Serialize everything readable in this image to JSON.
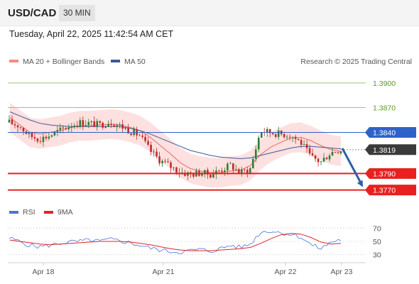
{
  "header": {
    "symbol": "USD/CAD",
    "timeframe": "30 MIN",
    "timestamp": "Tuesday, April 22, 2025 11:42:54 AM CET"
  },
  "legend": {
    "ma20": {
      "label": "MA 20 + Bollinger Bands",
      "color": "#f28b86"
    },
    "ma50": {
      "label": "MA 50",
      "color": "#3a5a9a"
    },
    "credit": "Research © 2025 Trading Central"
  },
  "indicator_legend": {
    "rsi": {
      "label": "RSI",
      "color": "#4a74d8"
    },
    "ma9": {
      "label": "9MA",
      "color": "#e0242a"
    }
  },
  "colors": {
    "up_candle": "#2e7d32",
    "down_candle": "#c62828",
    "resistance": "#7ab648",
    "pivot": "#2d62c9",
    "support": "#e82020",
    "current_price": "#3a3a3a",
    "band_fill": "#fde0e0",
    "arrow": "#2b5fa8"
  },
  "chart_data": [
    {
      "type": "candlestick",
      "title": "",
      "x_ticks": [
        "Apr 18",
        "Apr 21",
        "Apr 22",
        "Apr 23"
      ],
      "ylim": [
        1.3755,
        1.3918
      ],
      "y_axis_side": "right",
      "levels": [
        {
          "value": 1.39,
          "label": "1.3900",
          "role": "resistance"
        },
        {
          "value": 1.387,
          "label": "1.3870",
          "role": "resistance"
        },
        {
          "value": 1.384,
          "label": "1.3840",
          "role": "pivot"
        },
        {
          "value": 1.3819,
          "label": "1.3819",
          "role": "current"
        },
        {
          "value": 1.379,
          "label": "1.3790",
          "role": "support"
        },
        {
          "value": 1.377,
          "label": "1.3770",
          "role": "support"
        }
      ],
      "forecast": {
        "from": 1.3819,
        "to": 1.377,
        "direction": "down"
      },
      "price_path": [
        1.3852,
        1.3848,
        1.3836,
        1.3832,
        1.3836,
        1.3842,
        1.3848,
        1.3852,
        1.3851,
        1.3849,
        1.3853,
        1.3848,
        1.3842,
        1.3836,
        1.3818,
        1.3806,
        1.3799,
        1.3792,
        1.3789,
        1.3791,
        1.3789,
        1.3794,
        1.38,
        1.3791,
        1.3796,
        1.3842,
        1.384,
        1.3838,
        1.3837,
        1.3828,
        1.381,
        1.3804,
        1.3816,
        1.3819
      ],
      "ma20_path": [
        1.3858,
        1.3849,
        1.384,
        1.3838,
        1.384,
        1.3842,
        1.3846,
        1.3848,
        1.3848,
        1.3849,
        1.385,
        1.3849,
        1.3846,
        1.3842,
        1.3834,
        1.3824,
        1.3814,
        1.3803,
        1.3796,
        1.3793,
        1.3791,
        1.3791,
        1.3793,
        1.3794,
        1.38,
        1.3813,
        1.3822,
        1.3828,
        1.3833,
        1.3834,
        1.383,
        1.3824,
        1.3819,
        1.3817
      ],
      "ma50_path": [
        1.3865,
        1.386,
        1.3855,
        1.3851,
        1.3849,
        1.3848,
        1.3847,
        1.3847,
        1.3847,
        1.3847,
        1.3847,
        1.3847,
        1.3845,
        1.3842,
        1.3838,
        1.3833,
        1.3828,
        1.3823,
        1.3818,
        1.3815,
        1.3812,
        1.381,
        1.3809,
        1.3808,
        1.3809,
        1.3812,
        1.3815,
        1.3818,
        1.3821,
        1.3823,
        1.3823,
        1.3822,
        1.3821,
        1.382
      ],
      "band_width": 0.0018
    },
    {
      "type": "line",
      "title": "",
      "series": [
        {
          "name": "RSI",
          "values": [
            55,
            50,
            44,
            42,
            44,
            47,
            49,
            50,
            52,
            50,
            53,
            51,
            48,
            44,
            40,
            37,
            35,
            34,
            36,
            38,
            35,
            39,
            44,
            41,
            46,
            64,
            66,
            63,
            61,
            57,
            45,
            39,
            49,
            53
          ]
        },
        {
          "name": "9MA",
          "values": [
            52,
            50,
            48,
            46,
            45,
            46,
            47,
            48,
            49,
            50,
            50,
            50,
            49,
            47,
            45,
            42,
            39,
            37,
            36,
            36,
            36,
            37,
            38,
            39,
            41,
            47,
            54,
            60,
            62,
            61,
            56,
            49,
            46,
            47
          ]
        }
      ],
      "ylim": [
        20,
        80
      ],
      "y_ticks": [
        {
          "value": 70,
          "label": "70"
        },
        {
          "value": 50,
          "label": "50"
        },
        {
          "value": 30,
          "label": "30"
        }
      ]
    }
  ]
}
